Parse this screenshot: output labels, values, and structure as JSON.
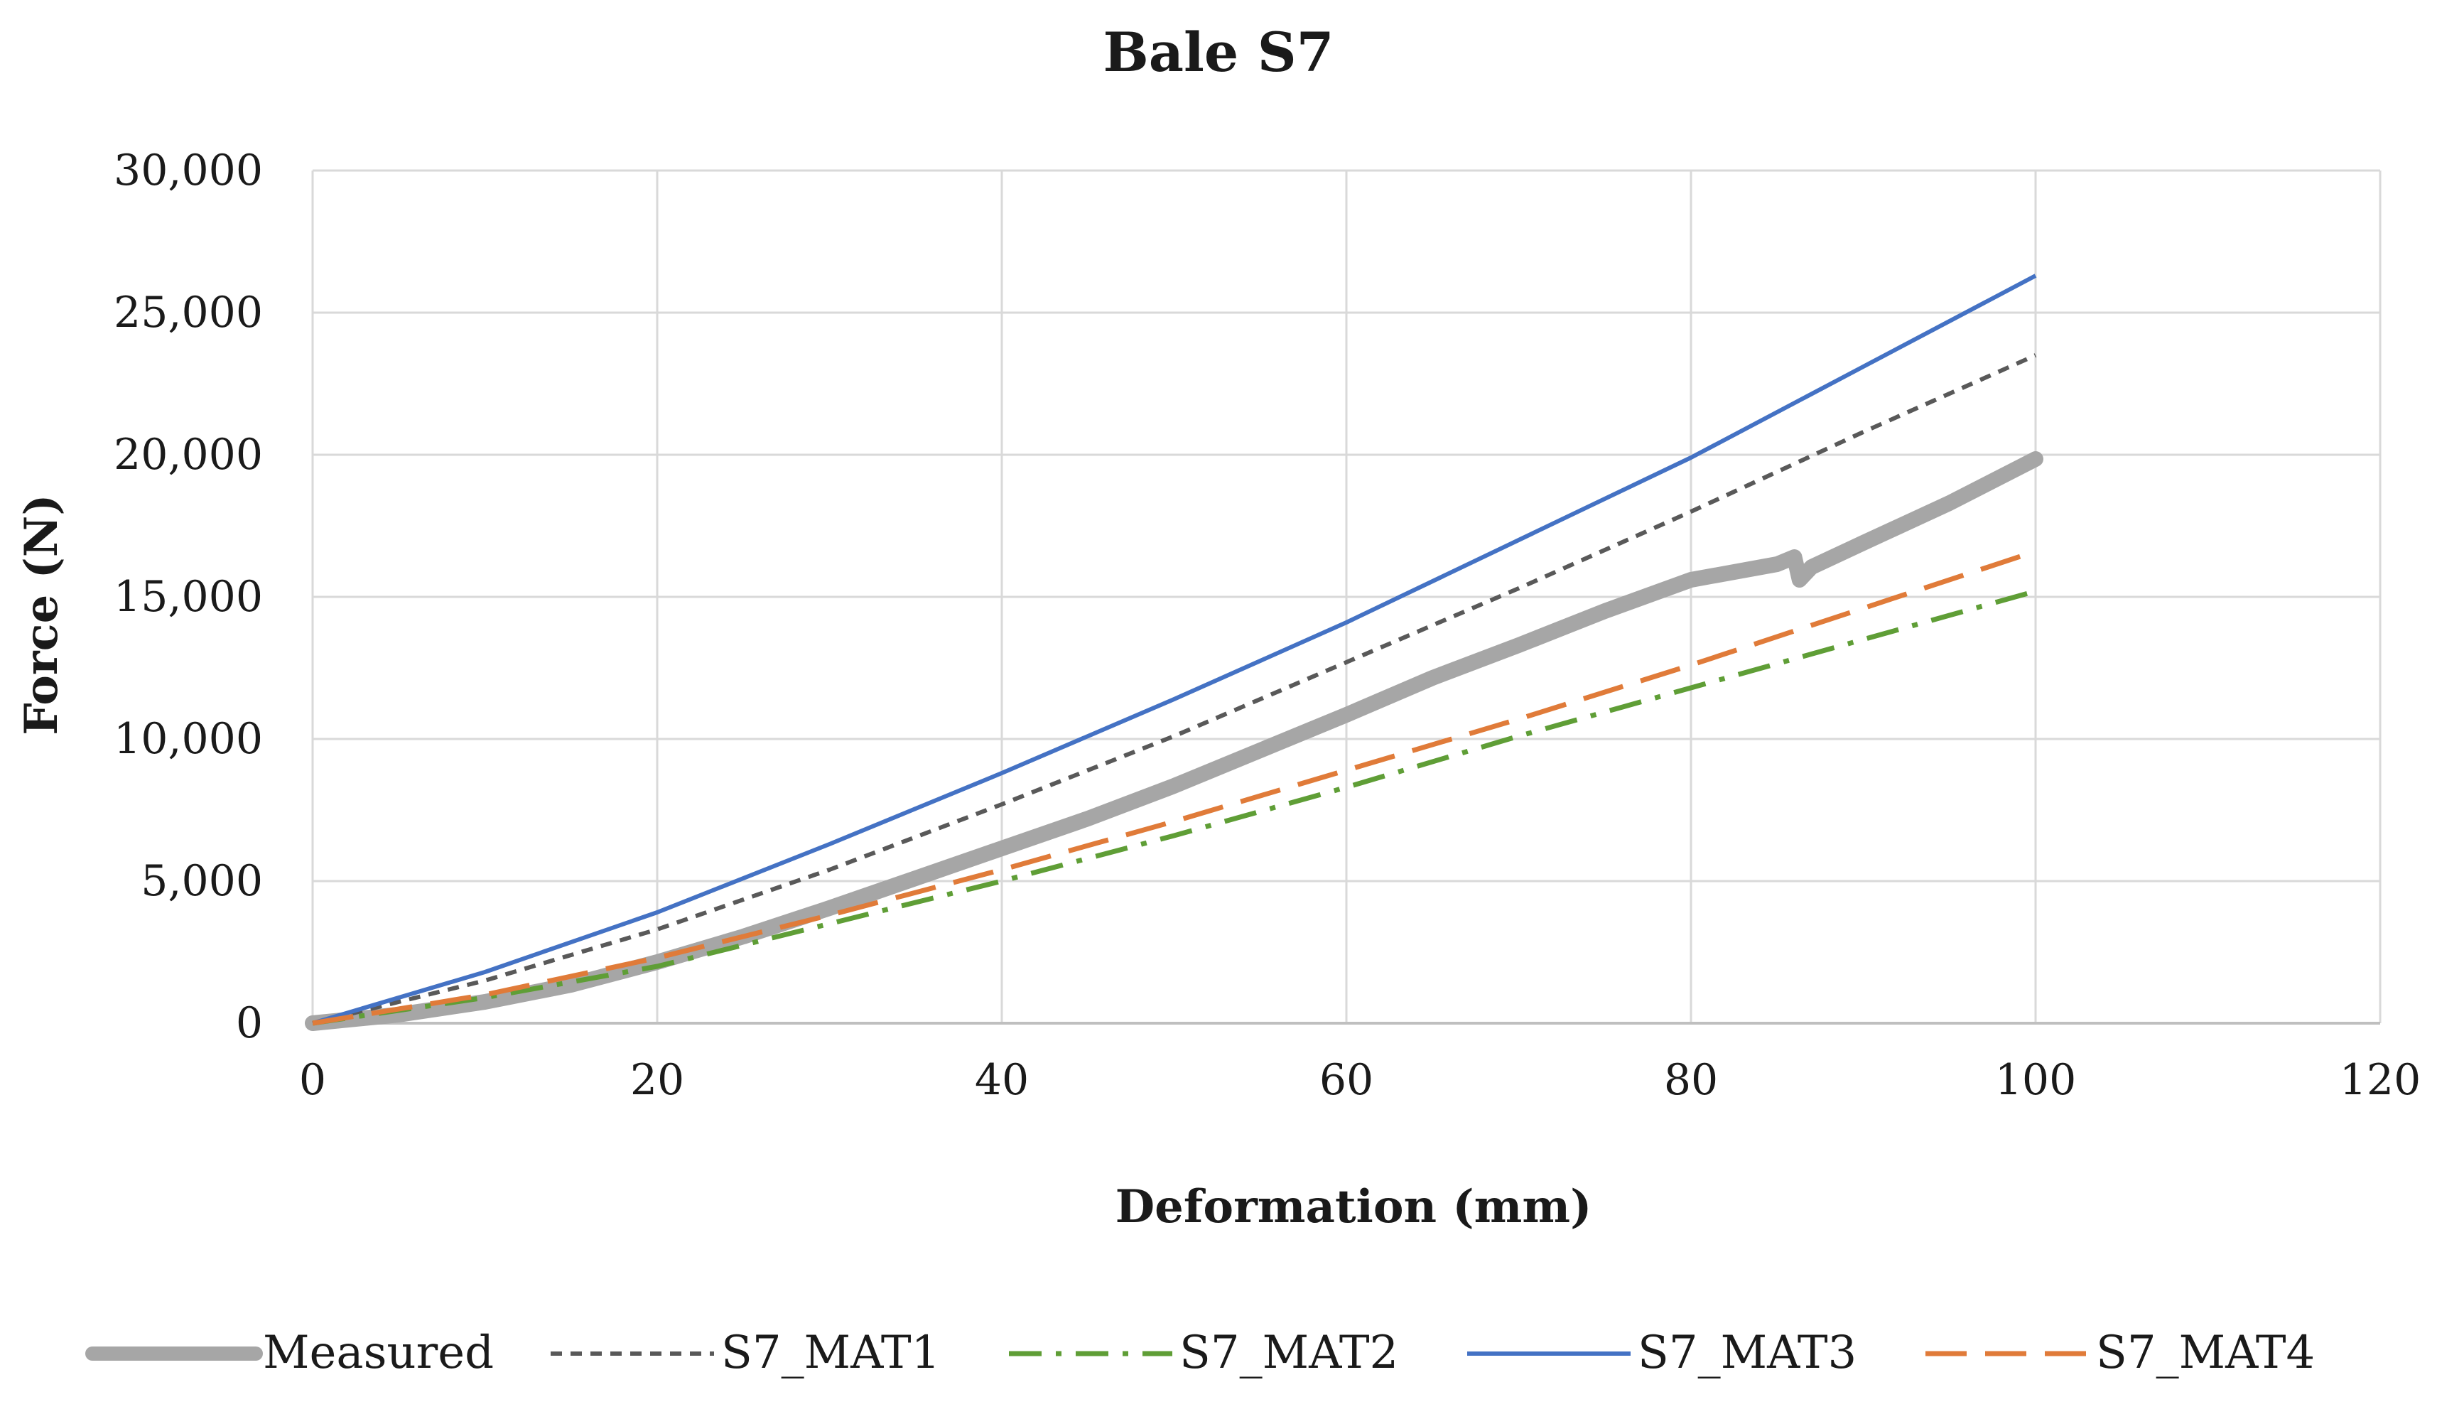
{
  "colors": {
    "background": "#ffffff",
    "grid": "#d9d9d9",
    "axis": "#bfbfbf",
    "text": "#1a1a1a"
  },
  "chart_data": {
    "type": "line",
    "title": "Bale S7",
    "xlabel": "Deformation (mm)",
    "ylabel": "Force (N)",
    "xlim": [
      0,
      120
    ],
    "ylim": [
      0,
      30000
    ],
    "x_ticks": [
      0,
      20,
      40,
      60,
      80,
      100,
      120
    ],
    "y_ticks": [
      0,
      5000,
      10000,
      15000,
      20000,
      25000,
      30000
    ],
    "x_tick_labels": [
      "0",
      "20",
      "40",
      "60",
      "80",
      "100",
      "120"
    ],
    "y_tick_labels": [
      "0",
      "5,000",
      "10,000",
      "15,000",
      "20,000",
      "25,000",
      "30,000"
    ],
    "grid": true,
    "legend_position": "bottom",
    "series": [
      {
        "name": "Measured",
        "color": "#a6a6a6",
        "style": "solid-thick",
        "x": [
          0,
          5,
          10,
          15,
          20,
          25,
          30,
          35,
          40,
          45,
          50,
          55,
          60,
          65,
          70,
          75,
          80,
          85,
          86,
          86.3,
          87,
          90,
          95,
          100
        ],
        "y": [
          0,
          300,
          750,
          1350,
          2150,
          3050,
          4050,
          5100,
          6150,
          7200,
          8350,
          9600,
          10850,
          12150,
          13300,
          14500,
          15600,
          16150,
          16400,
          15600,
          16050,
          16900,
          18300,
          19850
        ]
      },
      {
        "name": "S7_MAT1",
        "color": "#595959",
        "style": "short-dash",
        "x": [
          0,
          10,
          20,
          30,
          40,
          50,
          60,
          70,
          80,
          90,
          100
        ],
        "y": [
          0,
          1500,
          3300,
          5400,
          7700,
          10100,
          12700,
          15300,
          18000,
          20800,
          23500
        ]
      },
      {
        "name": "S7_MAT2",
        "color": "#5f9e36",
        "style": "dash-dot",
        "x": [
          0,
          10,
          20,
          30,
          40,
          50,
          60,
          70,
          80,
          90,
          100
        ],
        "y": [
          0,
          900,
          2000,
          3500,
          5000,
          6600,
          8300,
          10100,
          11800,
          13500,
          15200
        ]
      },
      {
        "name": "S7_MAT3",
        "color": "#4472c4",
        "style": "solid",
        "x": [
          0,
          10,
          20,
          30,
          40,
          50,
          60,
          70,
          80,
          90,
          100
        ],
        "y": [
          0,
          1800,
          3900,
          6300,
          8800,
          11400,
          14100,
          17000,
          19900,
          23100,
          26300
        ]
      },
      {
        "name": "S7_MAT4",
        "color": "#e07b39",
        "style": "long-dash",
        "x": [
          0,
          10,
          20,
          30,
          40,
          50,
          60,
          70,
          80,
          90,
          100
        ],
        "y": [
          0,
          1000,
          2300,
          3800,
          5400,
          7100,
          8900,
          10700,
          12600,
          14600,
          16600
        ]
      }
    ]
  }
}
